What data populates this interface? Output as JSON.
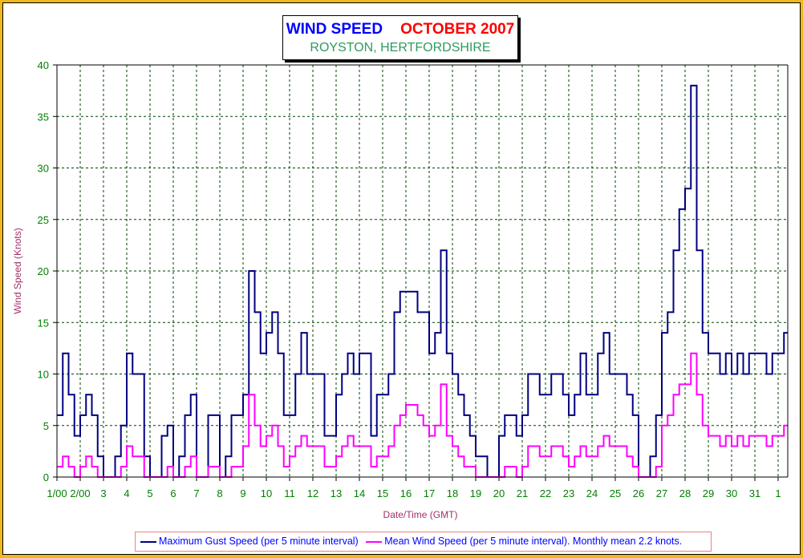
{
  "title": {
    "part1": "WIND SPEED",
    "part2": "OCTOBER 2007",
    "subtitle": "ROYSTON, HERTFORDSHIRE"
  },
  "chart_data": {
    "type": "line",
    "xlabel": "Date/Time (GMT)",
    "ylabel": "Wind Speed (Knots)",
    "ylim": [
      0,
      40
    ],
    "yticks": [
      "0",
      "5",
      "10",
      "15",
      "20",
      "25",
      "30",
      "35",
      "40"
    ],
    "xticks": [
      "1/00",
      "2/00",
      "3",
      "4",
      "5",
      "6",
      "7",
      "8",
      "9",
      "10",
      "11",
      "12",
      "13",
      "14",
      "15",
      "16",
      "17",
      "18",
      "19",
      "20",
      "21",
      "22",
      "23",
      "24",
      "25",
      "26",
      "27",
      "28",
      "29",
      "30",
      "31",
      "1"
    ],
    "x_resolution": "6-hourly (approximate)",
    "grid": true,
    "legend_placement": "bottom",
    "colors": {
      "gust": "#000080",
      "mean": "#ff00ff",
      "axis_text": "#008000",
      "label_text": "#a0306a"
    },
    "series": [
      {
        "name": "Maximum Gust Speed (per 5 minute interval)",
        "values": [
          6,
          12,
          8,
          4,
          6,
          8,
          6,
          2,
          0,
          0,
          2,
          5,
          12,
          10,
          10,
          2,
          0,
          0,
          4,
          5,
          0,
          2,
          6,
          8,
          0,
          0,
          6,
          6,
          0,
          2,
          6,
          6,
          8,
          20,
          16,
          12,
          14,
          16,
          12,
          6,
          6,
          10,
          14,
          10,
          10,
          10,
          4,
          4,
          8,
          10,
          12,
          10,
          12,
          12,
          4,
          8,
          8,
          10,
          16,
          18,
          18,
          18,
          16,
          16,
          12,
          14,
          22,
          12,
          10,
          8,
          6,
          4,
          2,
          2,
          0,
          0,
          4,
          6,
          6,
          4,
          6,
          10,
          10,
          8,
          8,
          10,
          10,
          8,
          6,
          8,
          12,
          8,
          8,
          12,
          14,
          10,
          10,
          10,
          8,
          6,
          0,
          0,
          2,
          6,
          14,
          16,
          22,
          26,
          28,
          38,
          22,
          14,
          12,
          12,
          10,
          12,
          10,
          12,
          10,
          12,
          12,
          12,
          10,
          12,
          12,
          14
        ]
      },
      {
        "name": "Mean Wind Speed (per 5 minute interval). Monthly mean 2.2 knots.",
        "values": [
          1,
          2,
          1,
          0,
          1,
          2,
          1,
          0,
          0,
          0,
          0,
          1,
          3,
          2,
          2,
          0,
          0,
          0,
          0,
          1,
          0,
          0,
          1,
          2,
          0,
          0,
          1,
          1,
          0,
          0,
          1,
          1,
          3,
          8,
          5,
          3,
          4,
          5,
          3,
          1,
          2,
          3,
          4,
          3,
          3,
          3,
          1,
          1,
          2,
          3,
          4,
          3,
          3,
          3,
          1,
          2,
          2,
          3,
          5,
          6,
          7,
          7,
          6,
          5,
          4,
          5,
          9,
          4,
          3,
          2,
          1,
          1,
          0,
          0,
          0,
          0,
          0,
          1,
          1,
          0,
          1,
          3,
          3,
          2,
          2,
          3,
          3,
          2,
          1,
          2,
          3,
          2,
          2,
          3,
          4,
          3,
          3,
          3,
          2,
          1,
          0,
          0,
          0,
          1,
          5,
          6,
          8,
          9,
          9,
          12,
          8,
          5,
          4,
          4,
          3,
          4,
          3,
          4,
          3,
          4,
          4,
          4,
          3,
          4,
          4,
          5
        ]
      }
    ]
  },
  "legend": {
    "gust": "Maximum Gust Speed (per 5 minute interval)",
    "mean": "Mean Wind Speed (per 5 minute interval). Monthly mean 2.2 knots."
  }
}
